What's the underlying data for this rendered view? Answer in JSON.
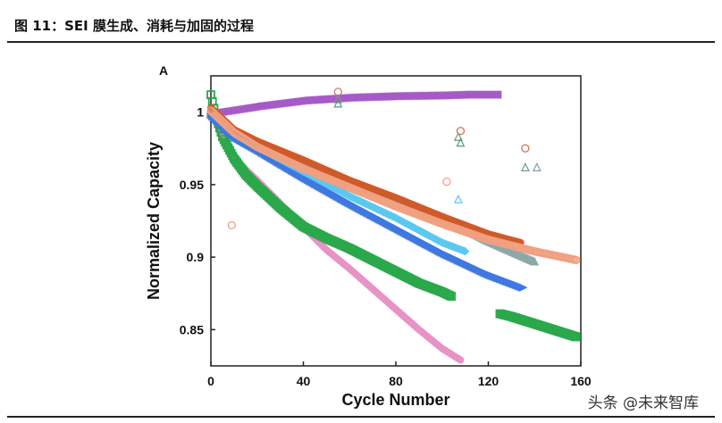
{
  "figure": {
    "title": "图 11：SEI 膜生成、消耗与加固的过程",
    "watermark": "头条 @未来智库"
  },
  "chart_data": {
    "type": "scatter",
    "panel_label": "A",
    "xlabel": "Cycle Number",
    "ylabel": "Normalized Capacity",
    "xlim": [
      0,
      160
    ],
    "ylim": [
      0.825,
      1.025
    ],
    "x_ticks": [
      "0",
      "40",
      "80",
      "120",
      "160"
    ],
    "y_ticks": [
      "1",
      "0.95",
      "0.9",
      "0.85"
    ],
    "grid": false,
    "legend": "none",
    "series": [
      {
        "color": "#a65bc8",
        "marker": "triangle-left",
        "x": [
          0,
          20,
          40,
          60,
          80,
          100,
          110,
          124
        ],
        "y": [
          0.999,
          1.004,
          1.008,
          1.01,
          1.011,
          1.0115,
          1.012,
          1.012
        ]
      },
      {
        "color": "#e893c6",
        "marker": "circle",
        "x": [
          0,
          5,
          10,
          20,
          30,
          40,
          50,
          60,
          70,
          80,
          90,
          100,
          108
        ],
        "y": [
          1.0,
          0.984,
          0.968,
          0.953,
          0.937,
          0.921,
          0.905,
          0.892,
          0.878,
          0.864,
          0.85,
          0.837,
          0.829
        ]
      },
      {
        "color": "#2aa84a",
        "marker": "square",
        "x": [
          0,
          2,
          5,
          10,
          15,
          20,
          30,
          40,
          50,
          60,
          70,
          80,
          90,
          100,
          104
        ],
        "y": [
          1.012,
          0.998,
          0.983,
          0.968,
          0.957,
          0.949,
          0.934,
          0.921,
          0.913,
          0.906,
          0.898,
          0.89,
          0.882,
          0.876,
          0.873
        ]
      },
      {
        "color": "#2aa84a",
        "marker": "square",
        "x": [
          125,
          130,
          140,
          150,
          158
        ],
        "y": [
          0.861,
          0.859,
          0.854,
          0.849,
          0.845
        ]
      },
      {
        "color": "#3f78e0",
        "marker": "triangle-right",
        "x": [
          0,
          10,
          20,
          40,
          60,
          80,
          100,
          120,
          135
        ],
        "y": [
          0.998,
          0.983,
          0.974,
          0.955,
          0.937,
          0.92,
          0.903,
          0.888,
          0.879
        ]
      },
      {
        "color": "#5cc8f0",
        "marker": "diamond",
        "x": [
          0,
          10,
          20,
          40,
          60,
          80,
          100,
          110
        ],
        "y": [
          1.0,
          0.985,
          0.976,
          0.959,
          0.942,
          0.927,
          0.91,
          0.904
        ]
      },
      {
        "color": "#8ea8a8",
        "marker": "triangle",
        "x": [
          0,
          10,
          20,
          40,
          60,
          80,
          100,
          120,
          140
        ],
        "y": [
          1.002,
          0.987,
          0.978,
          0.966,
          0.952,
          0.94,
          0.927,
          0.911,
          0.897
        ]
      },
      {
        "color": "#d05a2a",
        "marker": "circle",
        "x": [
          0,
          10,
          20,
          40,
          60,
          80,
          100,
          120,
          134
        ],
        "y": [
          1.003,
          0.988,
          0.98,
          0.967,
          0.953,
          0.941,
          0.928,
          0.916,
          0.91
        ]
      },
      {
        "color": "#f0a080",
        "marker": "circle-open",
        "x": [
          0,
          10,
          20,
          40,
          60,
          80,
          100,
          120,
          140,
          158
        ],
        "y": [
          1.001,
          0.986,
          0.976,
          0.961,
          0.948,
          0.935,
          0.923,
          0.912,
          0.904,
          0.898
        ]
      }
    ],
    "outliers": [
      {
        "x": 55,
        "y": 1.014,
        "marker": "circle-open",
        "color": "#c0826a"
      },
      {
        "x": 55,
        "y": 1.009,
        "marker": "triangle-open",
        "color": "#8a8a8a"
      },
      {
        "x": 55,
        "y": 1.006,
        "marker": "triangle-open",
        "color": "#4f9a8a"
      },
      {
        "x": 108,
        "y": 0.987,
        "marker": "circle-open",
        "color": "#d07050"
      },
      {
        "x": 107,
        "y": 0.983,
        "marker": "triangle-open",
        "color": "#6f9a6a"
      },
      {
        "x": 108,
        "y": 0.979,
        "marker": "triangle-open",
        "color": "#4f9a8a"
      },
      {
        "x": 107,
        "y": 0.94,
        "marker": "triangle-open",
        "color": "#5cc8f0"
      },
      {
        "x": 102,
        "y": 0.952,
        "marker": "circle-open",
        "color": "#f0a080"
      },
      {
        "x": 9,
        "y": 0.922,
        "marker": "circle-open",
        "color": "#f0a080"
      },
      {
        "x": 136,
        "y": 0.975,
        "marker": "circle-open",
        "color": "#d07050"
      },
      {
        "x": 136,
        "y": 0.962,
        "marker": "triangle-open",
        "color": "#6f9a8a"
      },
      {
        "x": 141,
        "y": 0.962,
        "marker": "triangle-open",
        "color": "#8a9aa8"
      }
    ]
  }
}
